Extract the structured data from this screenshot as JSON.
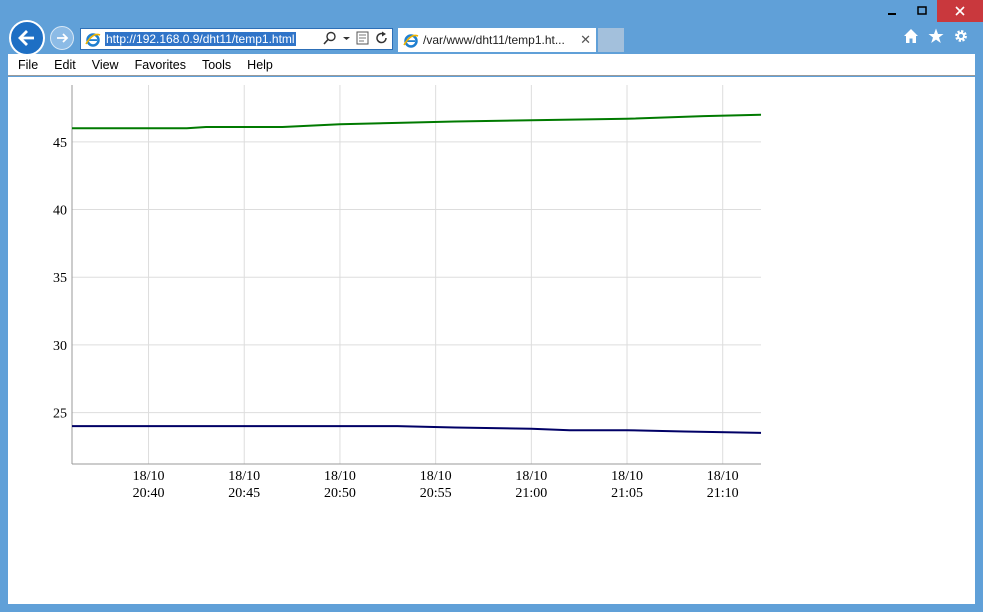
{
  "window": {
    "minimize_icon": "minimize-icon",
    "maximize_icon": "maximize-icon",
    "close_icon": "close-icon"
  },
  "address_bar": {
    "url": "http://192.168.0.9/dht11/temp1.html"
  },
  "tab": {
    "title": "/var/www/dht11/temp1.ht..."
  },
  "menu": {
    "items": [
      "File",
      "Edit",
      "View",
      "Favorites",
      "Tools",
      "Help"
    ]
  },
  "colors": {
    "series_green": "#007a00",
    "series_navy": "#000066",
    "grid": "#dddddd",
    "axis": "#999999"
  },
  "chart_data": {
    "type": "line",
    "title": "",
    "xlabel": "",
    "ylabel": "",
    "ylim": [
      21.2,
      49.2
    ],
    "xlim": [
      "2014-10-18T20:36:00",
      "2014-10-18T21:12:00"
    ],
    "yticks": [
      25,
      30,
      35,
      40,
      45
    ],
    "xticks": [
      {
        "date": "18/10",
        "time": "20:40",
        "t": "2014-10-18T20:40:00"
      },
      {
        "date": "18/10",
        "time": "20:45",
        "t": "2014-10-18T20:45:00"
      },
      {
        "date": "18/10",
        "time": "20:50",
        "t": "2014-10-18T20:50:00"
      },
      {
        "date": "18/10",
        "time": "20:55",
        "t": "2014-10-18T20:55:00"
      },
      {
        "date": "18/10",
        "time": "21:00",
        "t": "2014-10-18T21:00:00"
      },
      {
        "date": "18/10",
        "time": "21:05",
        "t": "2014-10-18T21:05:00"
      },
      {
        "date": "18/10",
        "time": "21:10",
        "t": "2014-10-18T21:10:00"
      }
    ],
    "grid": true,
    "series": [
      {
        "color": "#007a00",
        "x": [
          "2014-10-18T20:36:00",
          "2014-10-18T20:42:00",
          "2014-10-18T20:43:00",
          "2014-10-18T20:45:00",
          "2014-10-18T20:47:00",
          "2014-10-18T20:50:00",
          "2014-10-18T20:53:00",
          "2014-10-18T20:56:00",
          "2014-10-18T21:00:00",
          "2014-10-18T21:05:00",
          "2014-10-18T21:09:00",
          "2014-10-18T21:12:00"
        ],
        "values": [
          46.0,
          46.0,
          46.1,
          46.1,
          46.1,
          46.3,
          46.4,
          46.5,
          46.6,
          46.7,
          46.9,
          47.0
        ]
      },
      {
        "color": "#000066",
        "x": [
          "2014-10-18T20:36:00",
          "2014-10-18T20:45:00",
          "2014-10-18T20:53:00",
          "2014-10-18T20:56:00",
          "2014-10-18T21:00:00",
          "2014-10-18T21:02:00",
          "2014-10-18T21:05:00",
          "2014-10-18T21:08:00",
          "2014-10-18T21:12:00"
        ],
        "values": [
          24.0,
          24.0,
          24.0,
          23.9,
          23.8,
          23.7,
          23.7,
          23.6,
          23.5
        ]
      }
    ]
  }
}
